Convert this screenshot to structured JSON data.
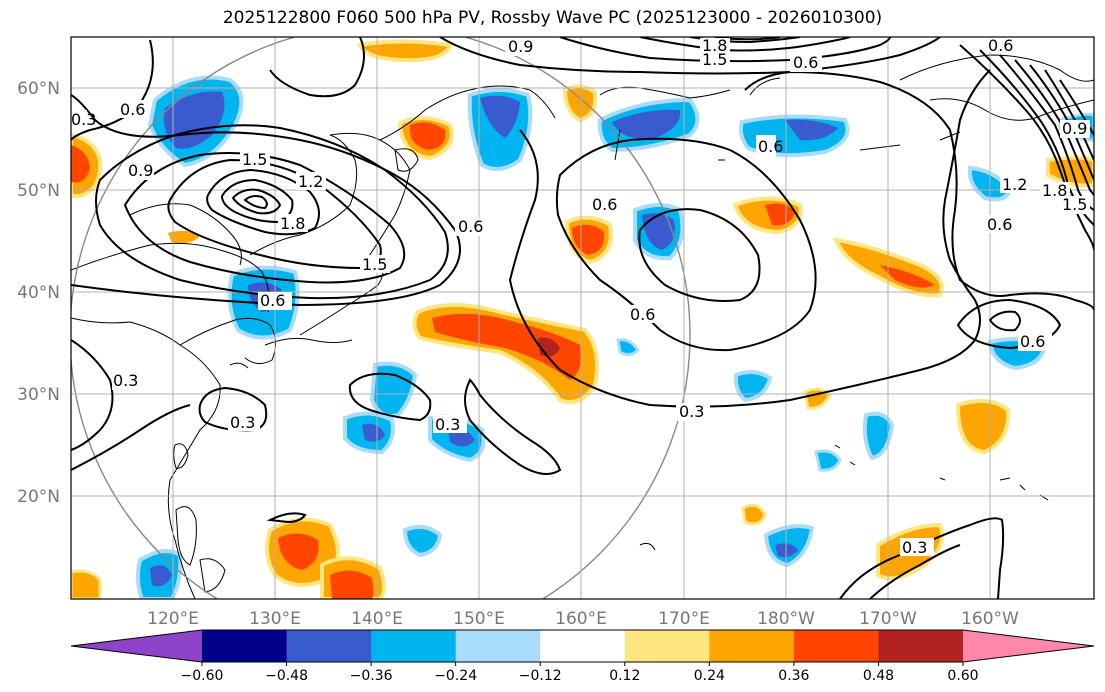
{
  "title": "2025122800 F060 500 hPa PV, Rossby Wave PC (2025123000 - 2026010300)",
  "lat_labels": [
    "60°N",
    "50°N",
    "40°N",
    "30°N",
    "20°N"
  ],
  "lon_labels": [
    "120°E",
    "130°E",
    "140°E",
    "150°E",
    "160°E",
    "170°E",
    "180°W",
    "170°W",
    "160°W"
  ],
  "colorbar": {
    "ticks": [
      "−0.60",
      "−0.48",
      "−0.36",
      "−0.24",
      "−0.12",
      "0.12",
      "0.24",
      "0.36",
      "0.48",
      "0.60"
    ],
    "colors": [
      "#8e44c8",
      "#00008b",
      "#3a5bd0",
      "#00b4f0",
      "#a8dcfa",
      "#ffffff",
      "#ffe680",
      "#ffa500",
      "#ff4500",
      "#b22222",
      "#ff88aa"
    ]
  },
  "contour_labels": {
    "a": "0.6",
    "b": "0.9",
    "c": "1.5",
    "d": "1.2",
    "e": "1.8",
    "f": "1.5",
    "g": "0.6",
    "h": "0.6",
    "i": "0.9",
    "j": "1.8",
    "k": "1.5",
    "l": "0.6",
    "m": "0.6",
    "n": "0.6",
    "o": "0.6",
    "p": "0.3",
    "q": "0.3",
    "r": "0.3",
    "s": "0.3",
    "t": "0.6",
    "u": "0.6",
    "v": "0.3",
    "w": "1.2",
    "x": "1.8",
    "y": "1.5",
    "z": "0.9",
    "aa": "0.3",
    "ab": "0.6"
  }
}
